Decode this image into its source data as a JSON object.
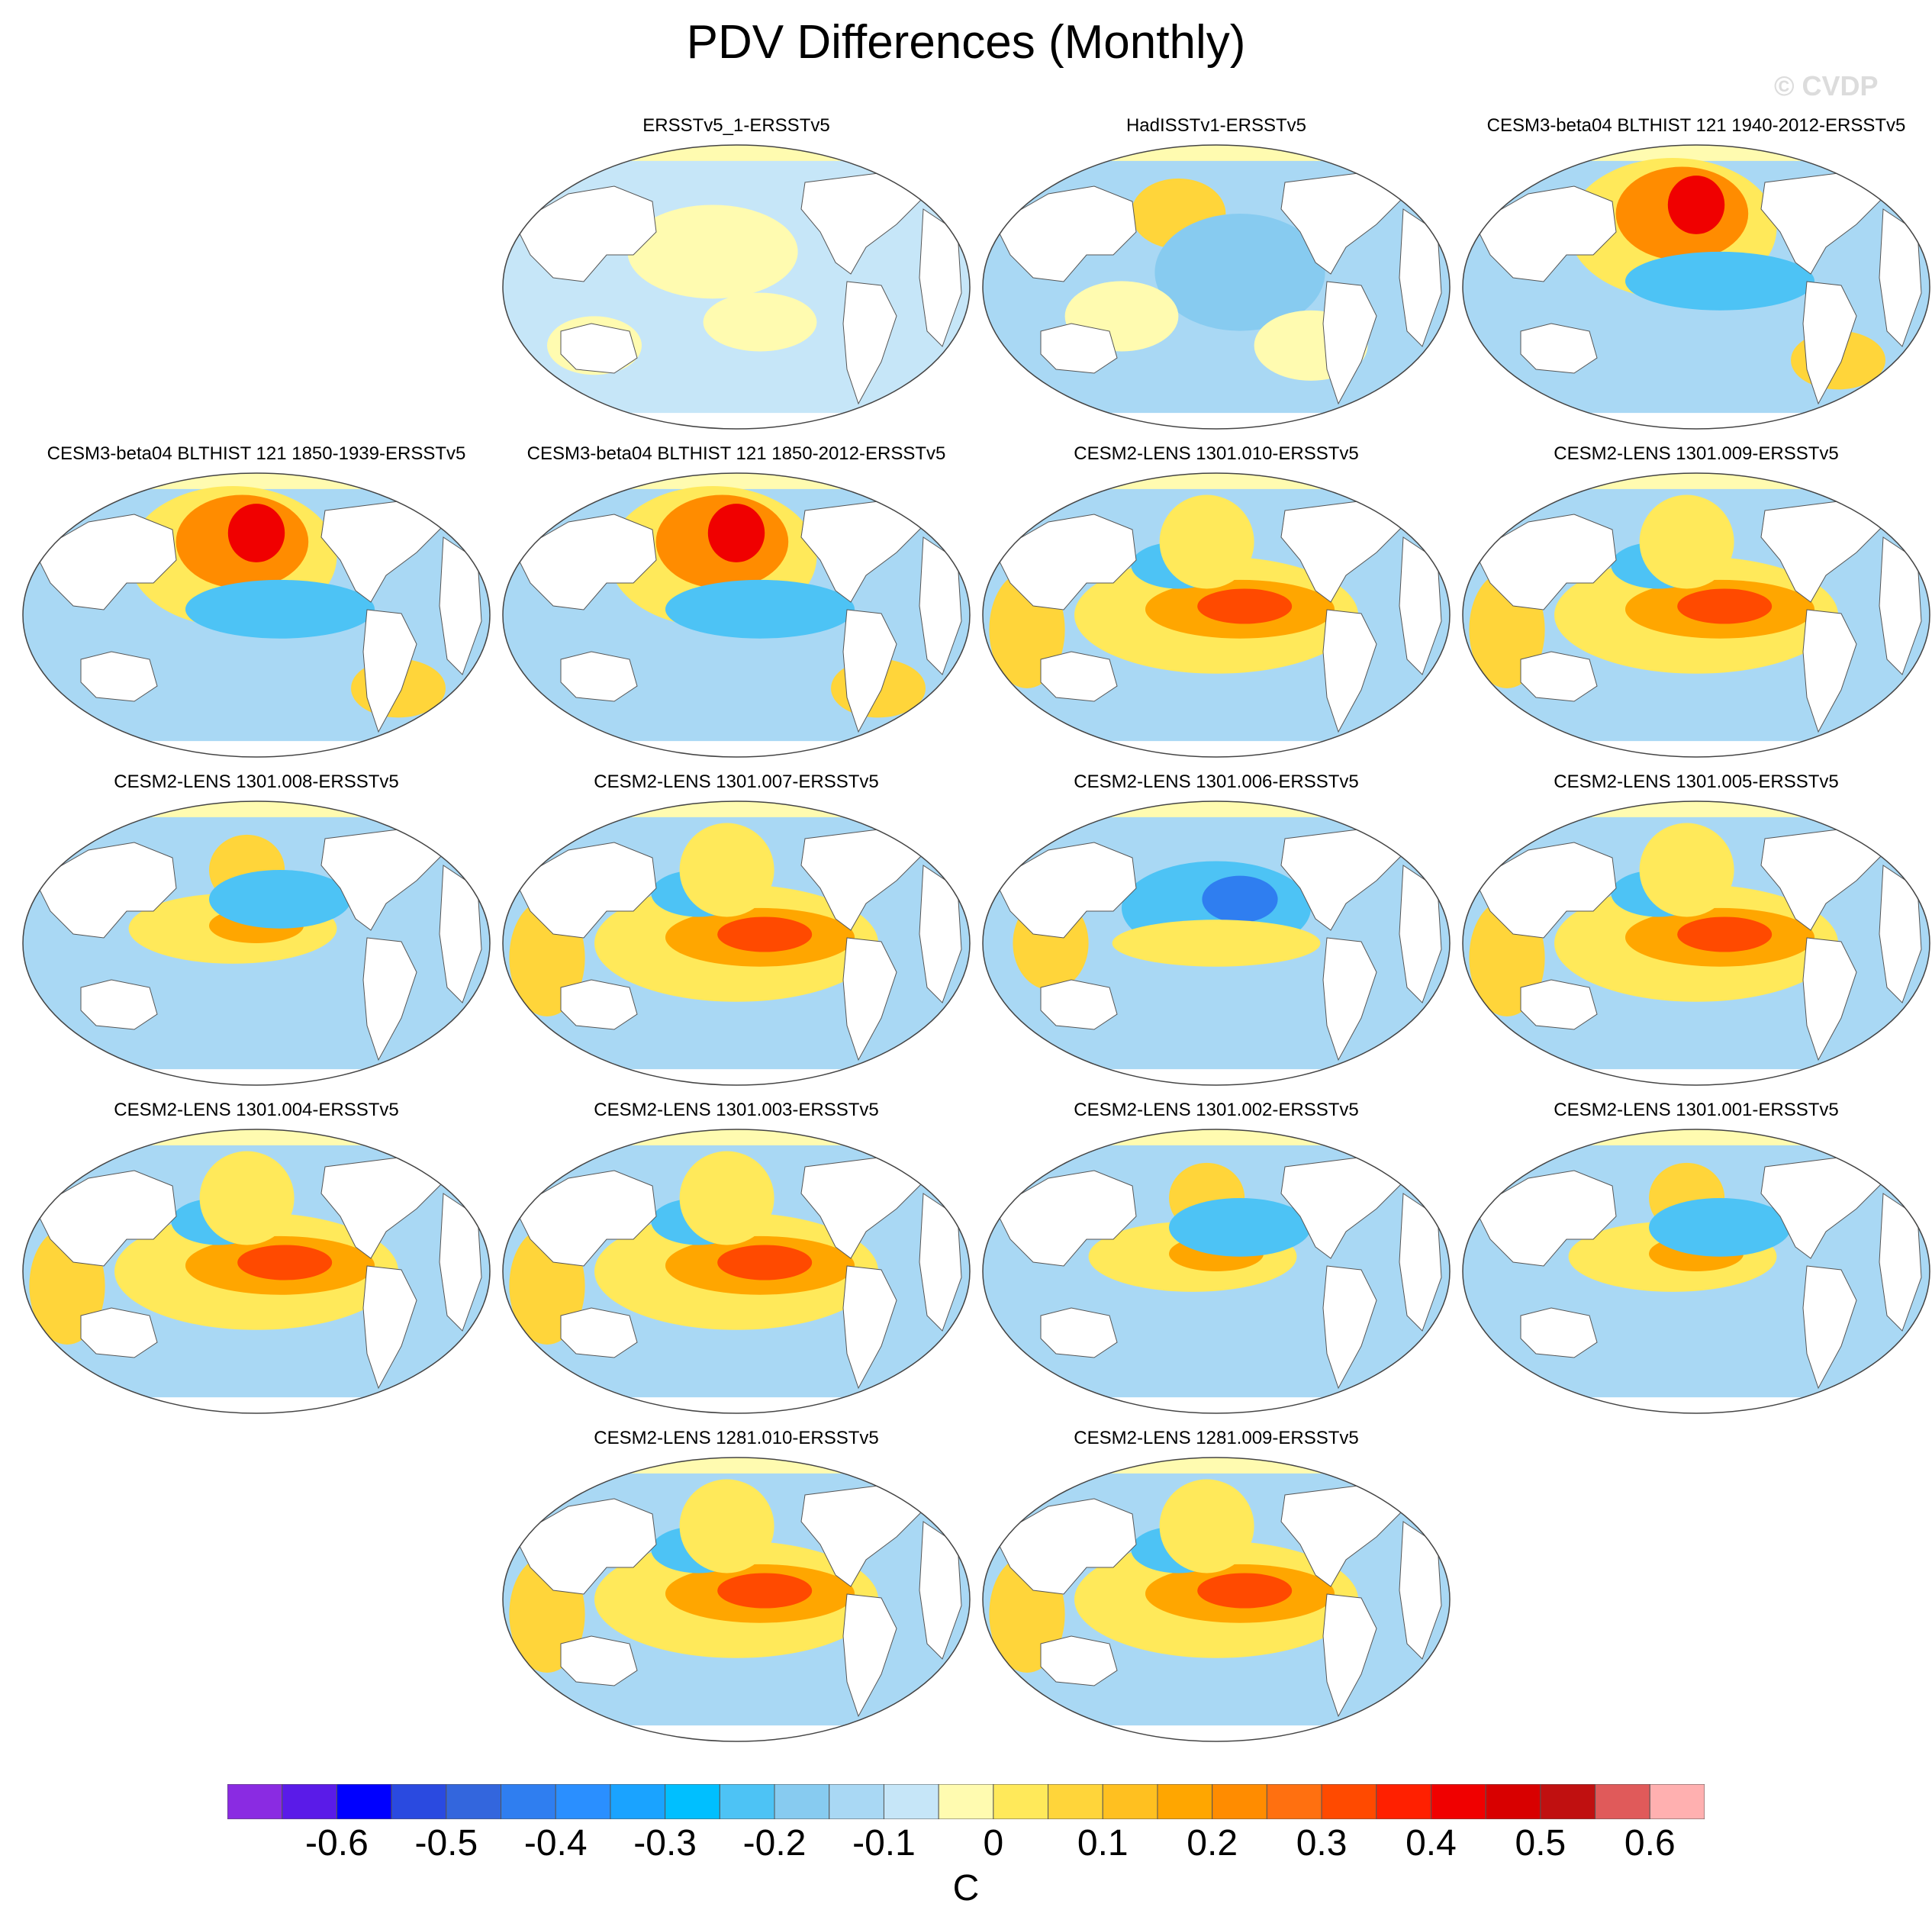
{
  "title": "PDV Differences (Monthly)",
  "watermark": "© CVDP",
  "panels": [
    {
      "label": "ERSSTv5_1-ERSSTv5",
      "row": 0,
      "col": 1,
      "pattern": "weak"
    },
    {
      "label": "HadISSTv1-ERSSTv5",
      "row": 0,
      "col": 2,
      "pattern": "noisy"
    },
    {
      "label": "CESM3-beta04 BLTHIST 121 1940-2012-ERSSTv5",
      "row": 0,
      "col": 3,
      "pattern": "npac-warm"
    },
    {
      "label": "CESM3-beta04 BLTHIST 121 1850-1939-ERSSTv5",
      "row": 1,
      "col": 0,
      "pattern": "npac-warm"
    },
    {
      "label": "CESM3-beta04 BLTHIST 121 1850-2012-ERSSTv5",
      "row": 1,
      "col": 1,
      "pattern": "npac-warm"
    },
    {
      "label": "CESM2-LENS 1301.010-ERSSTv5",
      "row": 1,
      "col": 2,
      "pattern": "enso-warm"
    },
    {
      "label": "CESM2-LENS 1301.009-ERSSTv5",
      "row": 1,
      "col": 3,
      "pattern": "enso-warm"
    },
    {
      "label": "CESM2-LENS 1301.008-ERSSTv5",
      "row": 2,
      "col": 0,
      "pattern": "mixed"
    },
    {
      "label": "CESM2-LENS 1301.007-ERSSTv5",
      "row": 2,
      "col": 1,
      "pattern": "enso-warm"
    },
    {
      "label": "CESM2-LENS 1301.006-ERSSTv5",
      "row": 2,
      "col": 2,
      "pattern": "cool"
    },
    {
      "label": "CESM2-LENS 1301.005-ERSSTv5",
      "row": 2,
      "col": 3,
      "pattern": "enso-warm"
    },
    {
      "label": "CESM2-LENS 1301.004-ERSSTv5",
      "row": 3,
      "col": 0,
      "pattern": "enso-warm"
    },
    {
      "label": "CESM2-LENS 1301.003-ERSSTv5",
      "row": 3,
      "col": 1,
      "pattern": "enso-warm"
    },
    {
      "label": "CESM2-LENS 1301.002-ERSSTv5",
      "row": 3,
      "col": 2,
      "pattern": "mixed"
    },
    {
      "label": "CESM2-LENS 1301.001-ERSSTv5",
      "row": 3,
      "col": 3,
      "pattern": "mixed"
    },
    {
      "label": "CESM2-LENS 1281.010-ERSSTv5",
      "row": 4,
      "col": 1,
      "pattern": "enso-warm"
    },
    {
      "label": "CESM2-LENS 1281.009-ERSSTv5",
      "row": 4,
      "col": 2,
      "pattern": "enso-warm"
    }
  ],
  "colorbar": {
    "colors": [
      "#8a2be2",
      "#5a1be8",
      "#0000ff",
      "#2a4ae0",
      "#3366dd",
      "#2f7ef0",
      "#2a8fff",
      "#1aa3ff",
      "#00bfff",
      "#4dc3f5",
      "#87cbf0",
      "#a9d8f4",
      "#c6e6f8",
      "#fffbb0",
      "#ffe95a",
      "#ffd53a",
      "#ffc020",
      "#ffa600",
      "#ff8c00",
      "#ff7010",
      "#ff4a00",
      "#ff2000",
      "#f00000",
      "#d80000",
      "#c01010",
      "#e05a5a",
      "#ffb0b0"
    ],
    "tick_labels": [
      "-0.6",
      "-0.5",
      "-0.4",
      "-0.3",
      "-0.2",
      "-0.1",
      "0",
      "0.1",
      "0.2",
      "0.3",
      "0.4",
      "0.5",
      "0.6"
    ],
    "units": "C"
  }
}
